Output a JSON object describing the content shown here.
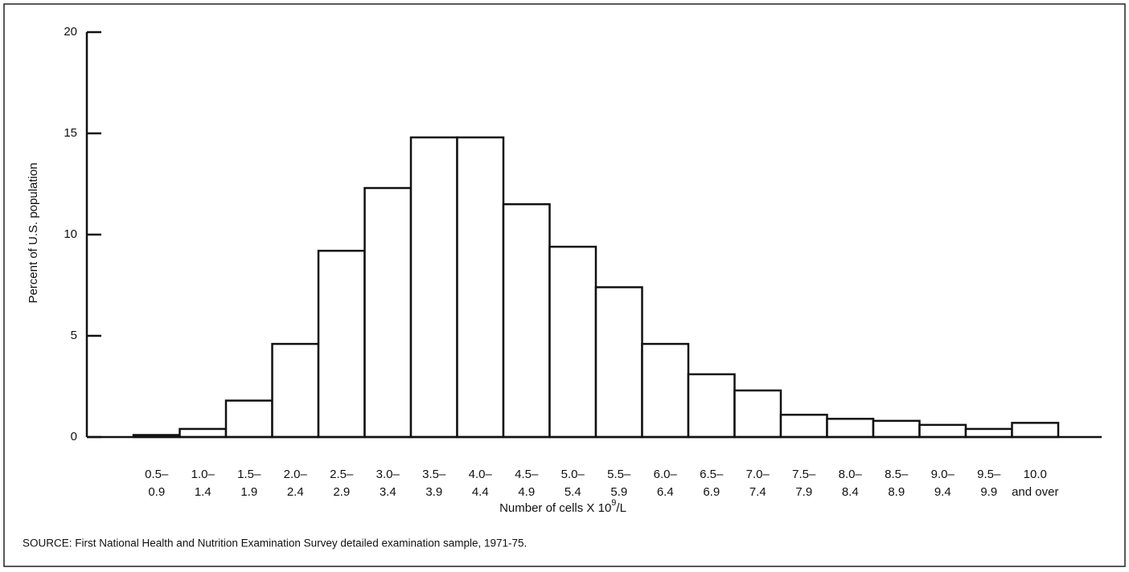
{
  "chart_data": {
    "type": "bar",
    "ylabel": "Percent of U.S. population",
    "xlabel": [
      "Number of cells X 10",
      "9",
      "/L"
    ],
    "source": "SOURCE:  First National Health and Nutrition Examination Survey detailed examination sample, 1971-75.",
    "categories": [
      [
        "0.5–",
        "0.9"
      ],
      [
        "1.0–",
        "1.4"
      ],
      [
        "1.5–",
        "1.9"
      ],
      [
        "2.0–",
        "2.4"
      ],
      [
        "2.5–",
        "2.9"
      ],
      [
        "3.0–",
        "3.4"
      ],
      [
        "3.5–",
        "3.9"
      ],
      [
        "4.0–",
        "4.4"
      ],
      [
        "4.5–",
        "4.9"
      ],
      [
        "5.0–",
        "5.4"
      ],
      [
        "5.5–",
        "5.9"
      ],
      [
        "6.0–",
        "6.4"
      ],
      [
        "6.5–",
        "6.9"
      ],
      [
        "7.0–",
        "7.4"
      ],
      [
        "7.5–",
        "7.9"
      ],
      [
        "8.0–",
        "8.4"
      ],
      [
        "8.5–",
        "8.9"
      ],
      [
        "9.0–",
        "9.4"
      ],
      [
        "9.5–",
        "9.9"
      ],
      [
        "10.0",
        "and over"
      ]
    ],
    "values": [
      0.1,
      0.4,
      1.8,
      4.6,
      9.2,
      12.3,
      14.8,
      14.8,
      11.5,
      9.4,
      7.4,
      4.6,
      3.1,
      2.3,
      1.1,
      0.9,
      0.8,
      0.6,
      0.4,
      0.7
    ],
    "color": "#ffffff",
    "ylim": [
      0,
      20
    ],
    "yticks": [
      0,
      5,
      10,
      15,
      20
    ]
  }
}
